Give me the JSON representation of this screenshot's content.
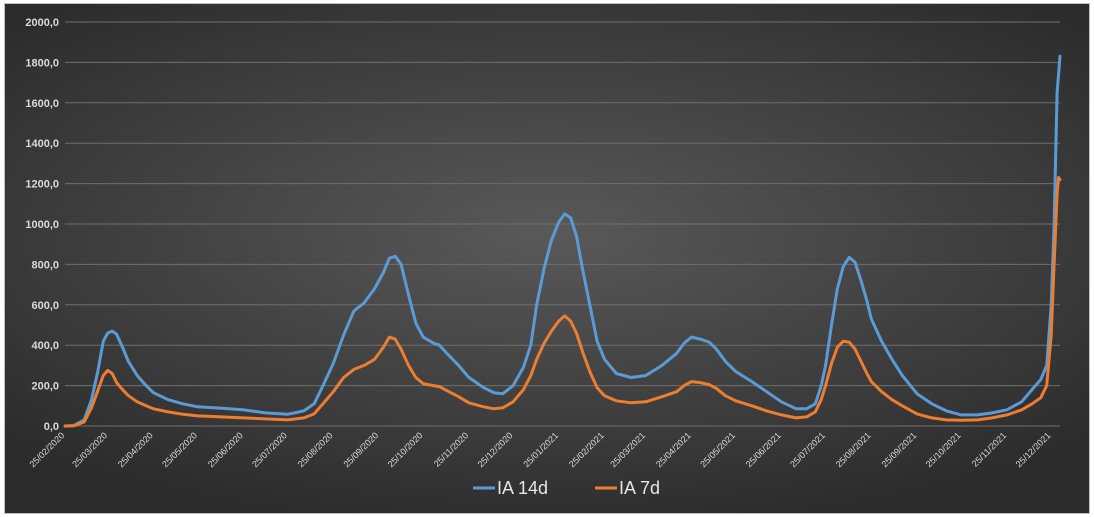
{
  "chart_data": {
    "type": "line",
    "title": "",
    "xlabel": "",
    "ylabel": "",
    "ylim": [
      0,
      2000
    ],
    "xlim": [
      "25/02/2020",
      "31/12/2021"
    ],
    "y_ticks": [
      "0,0",
      "200,0",
      "400,0",
      "600,0",
      "800,0",
      "1000,0",
      "1200,0",
      "1400,0",
      "1600,0",
      "1800,0",
      "2000,0"
    ],
    "x_ticks": [
      "25/02/2020",
      "25/03/2020",
      "25/04/2020",
      "25/05/2020",
      "25/06/2020",
      "25/07/2020",
      "25/08/2020",
      "25/09/2020",
      "25/10/2020",
      "25/11/2020",
      "25/12/2020",
      "25/01/2021",
      "25/02/2021",
      "25/03/2021",
      "25/04/2021",
      "25/05/2021",
      "25/06/2021",
      "25/07/2021",
      "25/08/2021",
      "25/09/2021",
      "25/10/2021",
      "25/11/2021",
      "25/12/2021"
    ],
    "grid": true,
    "legend_position": "bottom",
    "series": [
      {
        "name": "IA 14d",
        "color": "#5b9bd5",
        "points": [
          [
            "25/02/2020",
            0
          ],
          [
            "02/03/2020",
            2
          ],
          [
            "09/03/2020",
            30
          ],
          [
            "14/03/2020",
            130
          ],
          [
            "18/03/2020",
            260
          ],
          [
            "22/03/2020",
            420
          ],
          [
            "25/03/2020",
            460
          ],
          [
            "28/03/2020",
            470
          ],
          [
            "31/03/2020",
            455
          ],
          [
            "04/04/2020",
            390
          ],
          [
            "08/04/2020",
            320
          ],
          [
            "14/04/2020",
            250
          ],
          [
            "20/04/2020",
            200
          ],
          [
            "25/04/2020",
            165
          ],
          [
            "05/05/2020",
            130
          ],
          [
            "15/05/2020",
            110
          ],
          [
            "25/05/2020",
            95
          ],
          [
            "10/06/2020",
            88
          ],
          [
            "25/06/2020",
            80
          ],
          [
            "10/07/2020",
            65
          ],
          [
            "25/07/2020",
            58
          ],
          [
            "05/08/2020",
            75
          ],
          [
            "12/08/2020",
            110
          ],
          [
            "18/08/2020",
            200
          ],
          [
            "25/08/2020",
            310
          ],
          [
            "01/09/2020",
            450
          ],
          [
            "08/09/2020",
            570
          ],
          [
            "15/09/2020",
            610
          ],
          [
            "22/09/2020",
            680
          ],
          [
            "28/09/2020",
            760
          ],
          [
            "02/10/2020",
            830
          ],
          [
            "06/10/2020",
            840
          ],
          [
            "10/10/2020",
            800
          ],
          [
            "15/10/2020",
            650
          ],
          [
            "20/10/2020",
            510
          ],
          [
            "25/10/2020",
            440
          ],
          [
            "01/11/2020",
            410
          ],
          [
            "05/11/2020",
            400
          ],
          [
            "10/11/2020",
            360
          ],
          [
            "18/11/2020",
            300
          ],
          [
            "25/11/2020",
            240
          ],
          [
            "05/12/2020",
            190
          ],
          [
            "12/12/2020",
            165
          ],
          [
            "18/12/2020",
            160
          ],
          [
            "25/12/2020",
            200
          ],
          [
            "01/01/2021",
            290
          ],
          [
            "06/01/2021",
            400
          ],
          [
            "10/01/2021",
            600
          ],
          [
            "15/01/2021",
            780
          ],
          [
            "20/01/2021",
            920
          ],
          [
            "25/01/2021",
            1010
          ],
          [
            "29/01/2021",
            1050
          ],
          [
            "02/02/2021",
            1030
          ],
          [
            "06/02/2021",
            940
          ],
          [
            "10/02/2021",
            780
          ],
          [
            "15/02/2021",
            600
          ],
          [
            "20/02/2021",
            420
          ],
          [
            "25/02/2021",
            330
          ],
          [
            "05/03/2021",
            260
          ],
          [
            "15/03/2021",
            240
          ],
          [
            "25/03/2021",
            250
          ],
          [
            "05/04/2021",
            300
          ],
          [
            "15/04/2021",
            360
          ],
          [
            "20/04/2021",
            410
          ],
          [
            "25/04/2021",
            440
          ],
          [
            "01/05/2021",
            430
          ],
          [
            "07/05/2021",
            415
          ],
          [
            "12/05/2021",
            380
          ],
          [
            "18/05/2021",
            320
          ],
          [
            "25/05/2021",
            270
          ],
          [
            "05/06/2021",
            220
          ],
          [
            "15/06/2021",
            170
          ],
          [
            "25/06/2021",
            120
          ],
          [
            "05/07/2021",
            85
          ],
          [
            "12/07/2021",
            85
          ],
          [
            "18/07/2021",
            110
          ],
          [
            "22/07/2021",
            200
          ],
          [
            "25/07/2021",
            300
          ],
          [
            "29/07/2021",
            500
          ],
          [
            "02/08/2021",
            680
          ],
          [
            "06/08/2021",
            790
          ],
          [
            "10/08/2021",
            835
          ],
          [
            "14/08/2021",
            810
          ],
          [
            "18/08/2021",
            720
          ],
          [
            "22/08/2021",
            620
          ],
          [
            "25/08/2021",
            530
          ],
          [
            "01/09/2021",
            420
          ],
          [
            "08/09/2021",
            330
          ],
          [
            "15/09/2021",
            250
          ],
          [
            "25/09/2021",
            160
          ],
          [
            "05/10/2021",
            110
          ],
          [
            "15/10/2021",
            75
          ],
          [
            "25/10/2021",
            55
          ],
          [
            "05/11/2021",
            55
          ],
          [
            "15/11/2021",
            65
          ],
          [
            "25/11/2021",
            80
          ],
          [
            "05/12/2021",
            120
          ],
          [
            "12/12/2021",
            180
          ],
          [
            "18/12/2021",
            230
          ],
          [
            "22/12/2021",
            300
          ],
          [
            "25/12/2021",
            600
          ],
          [
            "27/12/2021",
            1000
          ],
          [
            "29/12/2021",
            1650
          ],
          [
            "31/12/2021",
            1830
          ]
        ]
      },
      {
        "name": "IA 7d",
        "color": "#ed7d31",
        "points": [
          [
            "25/02/2020",
            0
          ],
          [
            "02/03/2020",
            1
          ],
          [
            "09/03/2020",
            20
          ],
          [
            "14/03/2020",
            90
          ],
          [
            "18/03/2020",
            170
          ],
          [
            "22/03/2020",
            250
          ],
          [
            "25/03/2020",
            275
          ],
          [
            "28/03/2020",
            260
          ],
          [
            "31/03/2020",
            215
          ],
          [
            "04/04/2020",
            180
          ],
          [
            "08/04/2020",
            150
          ],
          [
            "14/04/2020",
            120
          ],
          [
            "20/04/2020",
            100
          ],
          [
            "25/04/2020",
            85
          ],
          [
            "05/05/2020",
            70
          ],
          [
            "15/05/2020",
            58
          ],
          [
            "25/05/2020",
            50
          ],
          [
            "10/06/2020",
            45
          ],
          [
            "25/06/2020",
            40
          ],
          [
            "10/07/2020",
            35
          ],
          [
            "25/07/2020",
            30
          ],
          [
            "05/08/2020",
            40
          ],
          [
            "12/08/2020",
            60
          ],
          [
            "18/08/2020",
            110
          ],
          [
            "25/08/2020",
            170
          ],
          [
            "01/09/2020",
            240
          ],
          [
            "08/09/2020",
            280
          ],
          [
            "15/09/2020",
            300
          ],
          [
            "22/09/2020",
            330
          ],
          [
            "28/09/2020",
            390
          ],
          [
            "02/10/2020",
            440
          ],
          [
            "06/10/2020",
            430
          ],
          [
            "10/10/2020",
            380
          ],
          [
            "15/10/2020",
            300
          ],
          [
            "20/10/2020",
            240
          ],
          [
            "25/10/2020",
            210
          ],
          [
            "01/11/2020",
            200
          ],
          [
            "05/11/2020",
            195
          ],
          [
            "10/11/2020",
            175
          ],
          [
            "18/11/2020",
            145
          ],
          [
            "25/11/2020",
            115
          ],
          [
            "05/12/2020",
            95
          ],
          [
            "12/12/2020",
            85
          ],
          [
            "18/12/2020",
            90
          ],
          [
            "25/12/2020",
            120
          ],
          [
            "01/01/2021",
            180
          ],
          [
            "06/01/2021",
            250
          ],
          [
            "10/01/2021",
            330
          ],
          [
            "15/01/2021",
            410
          ],
          [
            "20/01/2021",
            470
          ],
          [
            "25/01/2021",
            520
          ],
          [
            "29/01/2021",
            545
          ],
          [
            "02/02/2021",
            520
          ],
          [
            "06/02/2021",
            460
          ],
          [
            "10/02/2021",
            370
          ],
          [
            "15/02/2021",
            270
          ],
          [
            "20/02/2021",
            190
          ],
          [
            "25/02/2021",
            150
          ],
          [
            "05/03/2021",
            125
          ],
          [
            "15/03/2021",
            115
          ],
          [
            "25/03/2021",
            120
          ],
          [
            "05/04/2021",
            145
          ],
          [
            "15/04/2021",
            170
          ],
          [
            "20/04/2021",
            200
          ],
          [
            "25/04/2021",
            220
          ],
          [
            "01/05/2021",
            215
          ],
          [
            "07/05/2021",
            205
          ],
          [
            "12/05/2021",
            185
          ],
          [
            "18/05/2021",
            150
          ],
          [
            "25/05/2021",
            125
          ],
          [
            "05/06/2021",
            100
          ],
          [
            "15/06/2021",
            75
          ],
          [
            "25/06/2021",
            55
          ],
          [
            "05/07/2021",
            40
          ],
          [
            "12/07/2021",
            45
          ],
          [
            "18/07/2021",
            70
          ],
          [
            "22/07/2021",
            130
          ],
          [
            "25/07/2021",
            200
          ],
          [
            "29/07/2021",
            310
          ],
          [
            "02/08/2021",
            390
          ],
          [
            "06/08/2021",
            420
          ],
          [
            "10/08/2021",
            415
          ],
          [
            "14/08/2021",
            380
          ],
          [
            "18/08/2021",
            320
          ],
          [
            "22/08/2021",
            260
          ],
          [
            "25/08/2021",
            220
          ],
          [
            "01/09/2021",
            170
          ],
          [
            "08/09/2021",
            130
          ],
          [
            "15/09/2021",
            100
          ],
          [
            "25/09/2021",
            60
          ],
          [
            "05/10/2021",
            40
          ],
          [
            "15/10/2021",
            30
          ],
          [
            "25/10/2021",
            28
          ],
          [
            "05/11/2021",
            30
          ],
          [
            "15/11/2021",
            40
          ],
          [
            "25/11/2021",
            55
          ],
          [
            "05/12/2021",
            80
          ],
          [
            "12/12/2021",
            110
          ],
          [
            "18/12/2021",
            140
          ],
          [
            "22/12/2021",
            200
          ],
          [
            "25/12/2021",
            450
          ],
          [
            "27/12/2021",
            800
          ],
          [
            "29/12/2021",
            1150
          ],
          [
            "30/12/2021",
            1230
          ],
          [
            "31/12/2021",
            1220
          ]
        ]
      }
    ]
  }
}
